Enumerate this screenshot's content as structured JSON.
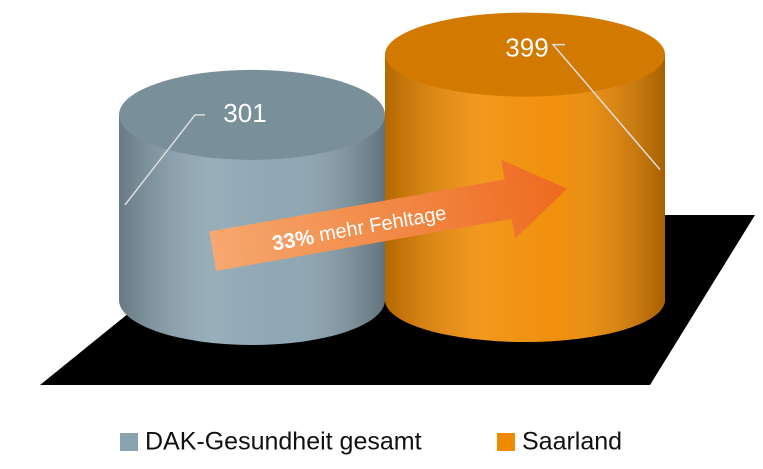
{
  "chart_data": {
    "type": "bar",
    "categories": [
      "DAK-Gesundheit gesamt",
      "Saarland"
    ],
    "series": [
      {
        "name": "DAK-Gesundheit gesamt",
        "color": "#8aa3b0",
        "values": [
          301,
          null
        ]
      },
      {
        "name": "Saarland",
        "color": "#f08a00",
        "values": [
          null,
          399
        ]
      }
    ],
    "annotation": {
      "highlight": "33%",
      "text": "mehr Fehltage"
    },
    "legend": "bottom"
  }
}
